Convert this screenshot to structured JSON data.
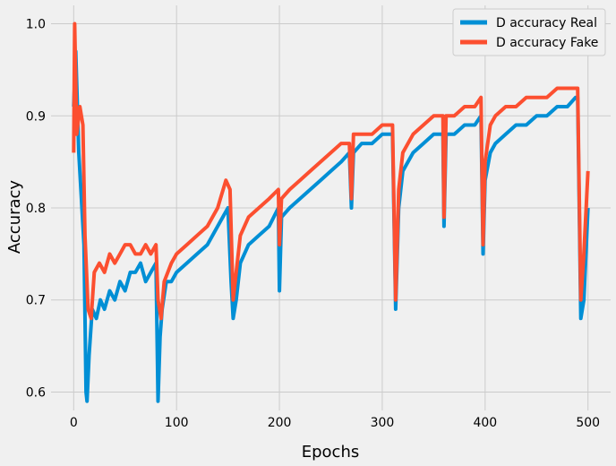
{
  "chart_data": {
    "type": "line",
    "title": "",
    "xlabel": "Epochs",
    "ylabel": "Accuracy",
    "xlim": [
      -22,
      522
    ],
    "ylim": [
      0.58,
      1.02
    ],
    "xticks": [
      0,
      100,
      200,
      300,
      400,
      500
    ],
    "yticks": [
      0.6,
      0.7,
      0.8,
      0.9,
      1.0
    ],
    "xtick_labels": [
      "0",
      "100",
      "200",
      "300",
      "400",
      "500"
    ],
    "ytick_labels": [
      "0.6",
      "0.7",
      "0.8",
      "0.9",
      "1.0"
    ],
    "grid": true,
    "legend_position": "top-right",
    "series": [
      {
        "name": "D accuracy Real",
        "color": "#008fd5",
        "points": [
          [
            0,
            0.91
          ],
          [
            2,
            0.97
          ],
          [
            5,
            0.86
          ],
          [
            8,
            0.8
          ],
          [
            10,
            0.76
          ],
          [
            12,
            0.6
          ],
          [
            13,
            0.59
          ],
          [
            15,
            0.64
          ],
          [
            18,
            0.69
          ],
          [
            22,
            0.68
          ],
          [
            26,
            0.7
          ],
          [
            30,
            0.69
          ],
          [
            35,
            0.71
          ],
          [
            40,
            0.7
          ],
          [
            45,
            0.72
          ],
          [
            50,
            0.71
          ],
          [
            55,
            0.73
          ],
          [
            60,
            0.73
          ],
          [
            65,
            0.74
          ],
          [
            70,
            0.72
          ],
          [
            75,
            0.73
          ],
          [
            80,
            0.74
          ],
          [
            82,
            0.59
          ],
          [
            84,
            0.66
          ],
          [
            86,
            0.69
          ],
          [
            90,
            0.72
          ],
          [
            95,
            0.72
          ],
          [
            100,
            0.73
          ],
          [
            110,
            0.74
          ],
          [
            120,
            0.75
          ],
          [
            130,
            0.76
          ],
          [
            140,
            0.78
          ],
          [
            150,
            0.8
          ],
          [
            153,
            0.72
          ],
          [
            155,
            0.68
          ],
          [
            158,
            0.7
          ],
          [
            162,
            0.74
          ],
          [
            170,
            0.76
          ],
          [
            180,
            0.77
          ],
          [
            190,
            0.78
          ],
          [
            199,
            0.8
          ],
          [
            200,
            0.71
          ],
          [
            202,
            0.79
          ],
          [
            210,
            0.8
          ],
          [
            220,
            0.81
          ],
          [
            230,
            0.82
          ],
          [
            240,
            0.83
          ],
          [
            250,
            0.84
          ],
          [
            260,
            0.85
          ],
          [
            268,
            0.86
          ],
          [
            270,
            0.8
          ],
          [
            272,
            0.86
          ],
          [
            280,
            0.87
          ],
          [
            290,
            0.87
          ],
          [
            300,
            0.88
          ],
          [
            310,
            0.88
          ],
          [
            313,
            0.69
          ],
          [
            316,
            0.8
          ],
          [
            320,
            0.84
          ],
          [
            330,
            0.86
          ],
          [
            340,
            0.87
          ],
          [
            350,
            0.88
          ],
          [
            359,
            0.88
          ],
          [
            360,
            0.78
          ],
          [
            362,
            0.88
          ],
          [
            370,
            0.88
          ],
          [
            380,
            0.89
          ],
          [
            390,
            0.89
          ],
          [
            396,
            0.9
          ],
          [
            398,
            0.75
          ],
          [
            400,
            0.83
          ],
          [
            405,
            0.86
          ],
          [
            410,
            0.87
          ],
          [
            420,
            0.88
          ],
          [
            430,
            0.89
          ],
          [
            440,
            0.89
          ],
          [
            450,
            0.9
          ],
          [
            460,
            0.9
          ],
          [
            470,
            0.91
          ],
          [
            480,
            0.91
          ],
          [
            488,
            0.92
          ],
          [
            490,
            0.92
          ],
          [
            493,
            0.68
          ],
          [
            496,
            0.7
          ],
          [
            500,
            0.8
          ]
        ]
      },
      {
        "name": "D accuracy Fake",
        "color": "#fc4f30",
        "points": [
          [
            0,
            0.86
          ],
          [
            1,
            1.0
          ],
          [
            3,
            0.88
          ],
          [
            6,
            0.91
          ],
          [
            9,
            0.89
          ],
          [
            11,
            0.77
          ],
          [
            14,
            0.69
          ],
          [
            17,
            0.68
          ],
          [
            20,
            0.73
          ],
          [
            25,
            0.74
          ],
          [
            30,
            0.73
          ],
          [
            35,
            0.75
          ],
          [
            40,
            0.74
          ],
          [
            45,
            0.75
          ],
          [
            50,
            0.76
          ],
          [
            55,
            0.76
          ],
          [
            60,
            0.75
          ],
          [
            65,
            0.75
          ],
          [
            70,
            0.76
          ],
          [
            75,
            0.75
          ],
          [
            80,
            0.76
          ],
          [
            82,
            0.7
          ],
          [
            85,
            0.68
          ],
          [
            88,
            0.72
          ],
          [
            95,
            0.74
          ],
          [
            100,
            0.75
          ],
          [
            110,
            0.76
          ],
          [
            120,
            0.77
          ],
          [
            130,
            0.78
          ],
          [
            140,
            0.8
          ],
          [
            148,
            0.83
          ],
          [
            152,
            0.82
          ],
          [
            155,
            0.7
          ],
          [
            158,
            0.73
          ],
          [
            162,
            0.77
          ],
          [
            170,
            0.79
          ],
          [
            180,
            0.8
          ],
          [
            190,
            0.81
          ],
          [
            199,
            0.82
          ],
          [
            200,
            0.76
          ],
          [
            202,
            0.81
          ],
          [
            210,
            0.82
          ],
          [
            220,
            0.83
          ],
          [
            230,
            0.84
          ],
          [
            240,
            0.85
          ],
          [
            250,
            0.86
          ],
          [
            260,
            0.87
          ],
          [
            268,
            0.87
          ],
          [
            270,
            0.81
          ],
          [
            272,
            0.88
          ],
          [
            280,
            0.88
          ],
          [
            290,
            0.88
          ],
          [
            300,
            0.89
          ],
          [
            310,
            0.89
          ],
          [
            313,
            0.7
          ],
          [
            316,
            0.82
          ],
          [
            320,
            0.86
          ],
          [
            330,
            0.88
          ],
          [
            340,
            0.89
          ],
          [
            350,
            0.9
          ],
          [
            359,
            0.9
          ],
          [
            360,
            0.79
          ],
          [
            362,
            0.9
          ],
          [
            370,
            0.9
          ],
          [
            380,
            0.91
          ],
          [
            390,
            0.91
          ],
          [
            396,
            0.92
          ],
          [
            398,
            0.76
          ],
          [
            400,
            0.85
          ],
          [
            405,
            0.89
          ],
          [
            410,
            0.9
          ],
          [
            420,
            0.91
          ],
          [
            430,
            0.91
          ],
          [
            440,
            0.92
          ],
          [
            450,
            0.92
          ],
          [
            460,
            0.92
          ],
          [
            470,
            0.93
          ],
          [
            480,
            0.93
          ],
          [
            488,
            0.93
          ],
          [
            490,
            0.93
          ],
          [
            493,
            0.7
          ],
          [
            496,
            0.75
          ],
          [
            500,
            0.84
          ]
        ]
      }
    ]
  }
}
